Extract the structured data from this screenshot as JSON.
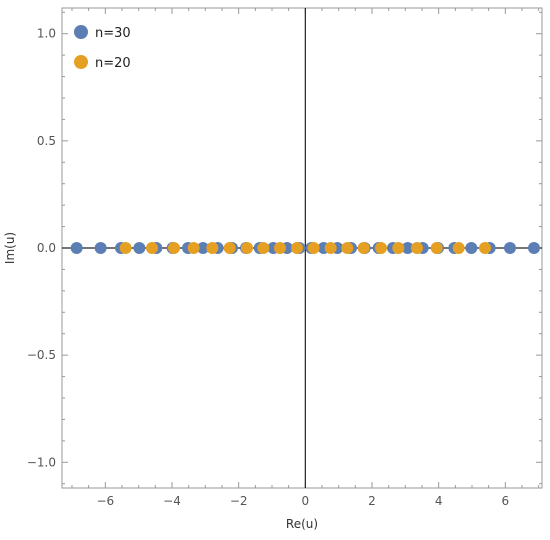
{
  "chart_data": {
    "type": "scatter",
    "title": "",
    "xlabel": "Re(u)",
    "ylabel": "Im(u)",
    "xlim": [
      -7.3,
      7.1
    ],
    "ylim": [
      -1.12,
      1.12
    ],
    "x_ticks": [
      -6,
      -4,
      -2,
      0,
      2,
      4,
      6
    ],
    "x_tick_labels": [
      "−6",
      "−4",
      "−2",
      "0",
      "2",
      "4",
      "6"
    ],
    "y_ticks": [
      -1.0,
      -0.5,
      0.0,
      0.5,
      1.0
    ],
    "y_tick_labels": [
      "−1.0",
      "−0.5",
      "0.0",
      "0.5",
      "1.0"
    ],
    "grid": false,
    "legend_position": "top-left",
    "series": [
      {
        "name": "n=30",
        "color": "#5b7fb4",
        "x": [
          -6.86,
          -6.14,
          -5.53,
          -4.98,
          -4.47,
          -3.98,
          -3.52,
          -3.07,
          -2.63,
          -2.2,
          -1.78,
          -1.37,
          -0.96,
          -0.55,
          -0.18,
          0.18,
          0.55,
          0.96,
          1.37,
          1.78,
          2.2,
          2.63,
          3.07,
          3.52,
          3.98,
          4.47,
          4.98,
          5.53,
          6.14,
          6.86
        ],
        "y": [
          0,
          0,
          0,
          0,
          0,
          0,
          0,
          0,
          0,
          0,
          0,
          0,
          0,
          0,
          0,
          0,
          0,
          0,
          0,
          0,
          0,
          0,
          0,
          0,
          0,
          0,
          0,
          0,
          0,
          0
        ]
      },
      {
        "name": "n=20",
        "color": "#e5a024",
        "x": [
          -5.39,
          -4.6,
          -3.94,
          -3.35,
          -2.79,
          -2.27,
          -1.75,
          -1.26,
          -0.76,
          -0.25,
          0.25,
          0.76,
          1.26,
          1.75,
          2.27,
          2.79,
          3.35,
          3.94,
          4.6,
          5.39
        ],
        "y": [
          0,
          0,
          0,
          0,
          0,
          0,
          0,
          0,
          0,
          0,
          0,
          0,
          0,
          0,
          0,
          0,
          0,
          0,
          0,
          0
        ]
      }
    ]
  }
}
